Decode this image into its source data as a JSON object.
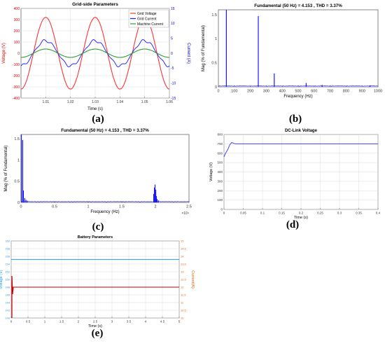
{
  "chart_data": [
    {
      "id": "a",
      "type": "line",
      "caption": "(a)",
      "title": "Grid-side Parameters",
      "xlabel": "Time (s)",
      "ylabel": "Voltage (V)",
      "ylabel_right": "Current (A)",
      "xlim": [
        1.0,
        1.06
      ],
      "ylim": [
        -400,
        400
      ],
      "ylim_right": [
        -15,
        15
      ],
      "xticks": [
        "1.01",
        "1.02",
        "1.03",
        "1.04",
        "1.05",
        "1.06"
      ],
      "yticks": [
        "-400",
        "-300",
        "-200",
        "-100",
        "0",
        "100",
        "200",
        "300",
        "400"
      ],
      "yticks_right": [
        "-15",
        "-10",
        "-5",
        "0",
        "5",
        "10",
        "15"
      ],
      "grid": true,
      "legend_position": "top-right",
      "series": [
        {
          "name": "Grid Voltage",
          "color": "#ff3333",
          "axis": "left",
          "amplitude": 320,
          "frequency_hz": 50,
          "phase_deg": -90
        },
        {
          "name": "Grid Current",
          "color": "#1a1aff",
          "axis": "right",
          "amplitude": 4.2,
          "frequency_hz": 50,
          "phase_deg": -90
        },
        {
          "name": "Machine Current",
          "color": "#2ca02c",
          "axis": "right",
          "amplitude": 1.4,
          "frequency_hz": 50,
          "phase_deg": -90
        }
      ]
    },
    {
      "id": "b",
      "type": "bar",
      "caption": "(b)",
      "title": "Fundamental (50 Hz) = 4.153 , THD = 3.37%",
      "xlabel": "Frequency (Hz)",
      "ylabel": "Mag (% of Fundamental)",
      "xlim": [
        0,
        1000
      ],
      "ylim": [
        0,
        1.6
      ],
      "xticks": [
        "0",
        "100",
        "200",
        "300",
        "400",
        "500",
        "600",
        "700",
        "800",
        "900",
        "1000"
      ],
      "yticks": [
        "0",
        "0.5",
        "1",
        "1.5"
      ],
      "color": "#1a1aff",
      "x": [
        50,
        250,
        350,
        550,
        650,
        950
      ],
      "values": [
        1.6,
        1.47,
        0.28,
        0.08,
        0.04,
        0.03
      ]
    },
    {
      "id": "c",
      "type": "bar",
      "caption": "(c)",
      "title": "Fundamental (50 Hz) = 4.153 , THD = 3.37%",
      "xlabel": "Frequency (Hz)",
      "ylabel": "Mag (% of Fundamental)",
      "xlim": [
        0,
        25000
      ],
      "ylim": [
        0,
        1.6
      ],
      "xticks": [
        "0",
        "0.5",
        "1",
        "1.5",
        "2",
        "2.5"
      ],
      "x_exponent": "×10⁴",
      "yticks": [
        "0",
        "0.5",
        "1",
        "1.5"
      ],
      "color": "#1a1aff",
      "x": [
        50,
        250,
        350,
        550,
        750,
        950,
        19750,
        19850,
        19950,
        20050,
        20150,
        20250,
        20450
      ],
      "values": [
        1.6,
        1.47,
        0.28,
        0.1,
        0.06,
        0.04,
        0.2,
        0.35,
        0.42,
        0.3,
        0.15,
        0.08,
        0.05
      ]
    },
    {
      "id": "d",
      "type": "line",
      "caption": "(d)",
      "title": "DC-Link Voltage",
      "xlabel": "Time (s)",
      "ylabel": "Voltage (V)",
      "xlim": [
        0,
        0.4
      ],
      "ylim": [
        0,
        800
      ],
      "xticks": [
        "0",
        "0.05",
        "0.1",
        "0.15",
        "0.2",
        "0.25",
        "0.3",
        "0.35",
        "0.4"
      ],
      "yticks": [
        "0",
        "100",
        "200",
        "300",
        "400",
        "500",
        "600",
        "700",
        "800"
      ],
      "grid": true,
      "color": "#4040ff",
      "x": [
        0,
        0.004,
        0.01,
        0.015,
        0.02,
        0.025,
        0.03,
        0.4
      ],
      "y": [
        560,
        600,
        640,
        690,
        715,
        705,
        700,
        700
      ]
    },
    {
      "id": "e",
      "type": "line",
      "caption": "(e)",
      "title": "Battery Parameters",
      "xlabel": "Time (s)",
      "ylabel": "Voltage (V)",
      "ylabel_right": "Current(A)",
      "xlim": [
        0,
        5
      ],
      "ylim": [
        140,
        160
      ],
      "ylim_right": [
        10,
        15
      ],
      "xticks": [
        "0",
        "0.5",
        "1",
        "1.5",
        "2",
        "2.5",
        "3",
        "3.5",
        "4",
        "4.5",
        "5"
      ],
      "yticks": [
        "140",
        "142",
        "144",
        "146",
        "148",
        "150",
        "152",
        "154",
        "156",
        "158",
        "160"
      ],
      "yticks_right": [
        "10",
        "10.5",
        "11",
        "11.5",
        "12",
        "12.5",
        "13",
        "13.5",
        "14",
        "14.5",
        "15"
      ],
      "grid": true,
      "series": [
        {
          "name": "Voltage",
          "color": "#1f9fe0",
          "axis": "left",
          "x": [
            0,
            5
          ],
          "y": [
            155.2,
            155.2
          ]
        },
        {
          "name": "Current",
          "color": "#cc0000",
          "axis": "right",
          "x": [
            0,
            5
          ],
          "y": [
            12.0,
            12.0
          ]
        }
      ],
      "ylabel_color": "#1f9fe0",
      "ylabel_right_color": "#e06010"
    }
  ]
}
